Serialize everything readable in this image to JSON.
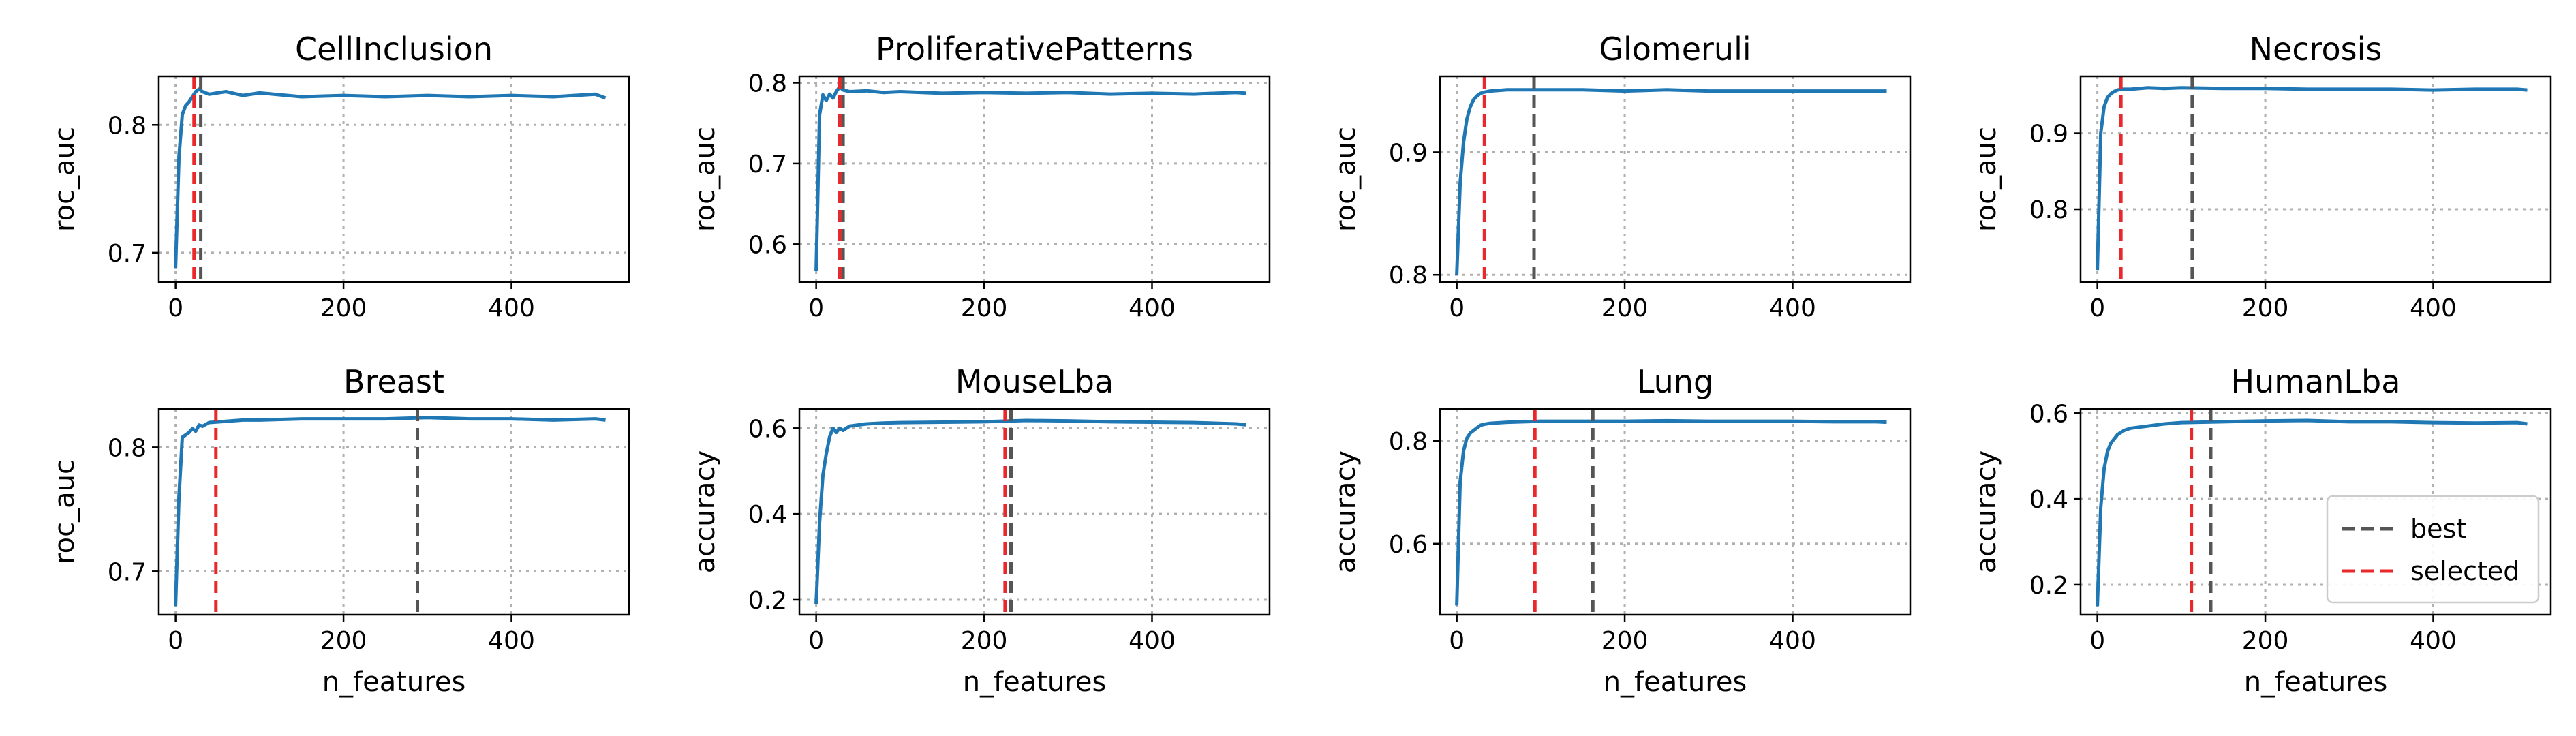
{
  "figure": {
    "colors": {
      "curve": "#1f77b4",
      "best": "#555555",
      "selected": "#e8282a",
      "grid": "#b0b0b0"
    }
  },
  "chart_data": [
    {
      "type": "line",
      "title": "CellInclusion",
      "xlabel": "",
      "ylabel": "roc_auc",
      "xlim": [
        -20,
        540
      ],
      "ylim": [
        0.677,
        0.838
      ],
      "xticks": [
        0,
        200,
        400
      ],
      "xtick_labels": [
        "0",
        "200",
        "400"
      ],
      "yticks": [
        0.7,
        0.8
      ],
      "ytick_labels": [
        "0.7",
        "0.8"
      ],
      "grid": true,
      "x": [
        0,
        4,
        8,
        12,
        16,
        20,
        24,
        28,
        32,
        40,
        60,
        80,
        100,
        150,
        200,
        250,
        300,
        350,
        400,
        450,
        500,
        512
      ],
      "y": [
        0.688,
        0.775,
        0.808,
        0.815,
        0.818,
        0.822,
        0.826,
        0.828,
        0.826,
        0.824,
        0.826,
        0.823,
        0.825,
        0.822,
        0.823,
        0.822,
        0.823,
        0.822,
        0.823,
        0.822,
        0.824,
        0.821
      ],
      "best_x": 30,
      "selected_x": 22
    },
    {
      "type": "line",
      "title": "ProliferativePatterns",
      "xlabel": "",
      "ylabel": "roc_auc",
      "xlim": [
        -20,
        540
      ],
      "ylim": [
        0.553,
        0.808
      ],
      "xticks": [
        0,
        200,
        400
      ],
      "xtick_labels": [
        "0",
        "200",
        "400"
      ],
      "yticks": [
        0.6,
        0.7,
        0.8
      ],
      "ytick_labels": [
        "0.6",
        "0.7",
        "0.8"
      ],
      "grid": true,
      "x": [
        0,
        4,
        8,
        12,
        16,
        20,
        24,
        28,
        32,
        40,
        60,
        80,
        100,
        150,
        200,
        250,
        300,
        350,
        400,
        450,
        500,
        512
      ],
      "y": [
        0.567,
        0.76,
        0.785,
        0.778,
        0.786,
        0.781,
        0.789,
        0.795,
        0.791,
        0.789,
        0.79,
        0.788,
        0.789,
        0.787,
        0.788,
        0.787,
        0.788,
        0.786,
        0.787,
        0.786,
        0.788,
        0.787
      ],
      "best_x": 32,
      "selected_x": 28
    },
    {
      "type": "line",
      "title": "Glomeruli",
      "xlabel": "",
      "ylabel": "roc_auc",
      "xlim": [
        -20,
        540
      ],
      "ylim": [
        0.794,
        0.962
      ],
      "xticks": [
        0,
        200,
        400
      ],
      "xtick_labels": [
        "0",
        "200",
        "400"
      ],
      "yticks": [
        0.8,
        0.9
      ],
      "ytick_labels": [
        "0.8",
        "0.9"
      ],
      "grid": true,
      "x": [
        0,
        4,
        8,
        12,
        16,
        20,
        24,
        28,
        32,
        40,
        60,
        80,
        100,
        150,
        200,
        250,
        300,
        350,
        400,
        450,
        500,
        512
      ],
      "y": [
        0.8,
        0.875,
        0.908,
        0.927,
        0.937,
        0.943,
        0.946,
        0.948,
        0.949,
        0.95,
        0.951,
        0.951,
        0.951,
        0.951,
        0.95,
        0.951,
        0.95,
        0.95,
        0.95,
        0.95,
        0.95,
        0.95
      ],
      "best_x": 92,
      "selected_x": 33
    },
    {
      "type": "line",
      "title": "Necrosis",
      "xlabel": "",
      "ylabel": "roc_auc",
      "xlim": [
        -20,
        540
      ],
      "ylim": [
        0.704,
        0.975
      ],
      "xticks": [
        0,
        200,
        400
      ],
      "xtick_labels": [
        "0",
        "200",
        "400"
      ],
      "yticks": [
        0.8,
        0.9
      ],
      "ytick_labels": [
        "0.8",
        "0.9"
      ],
      "grid": true,
      "x": [
        0,
        4,
        8,
        12,
        16,
        20,
        24,
        28,
        32,
        40,
        60,
        80,
        100,
        150,
        200,
        250,
        300,
        350,
        400,
        450,
        500,
        512
      ],
      "y": [
        0.72,
        0.9,
        0.935,
        0.947,
        0.952,
        0.955,
        0.957,
        0.958,
        0.958,
        0.958,
        0.96,
        0.959,
        0.96,
        0.959,
        0.959,
        0.958,
        0.958,
        0.958,
        0.957,
        0.958,
        0.958,
        0.957
      ],
      "best_x": 113,
      "selected_x": 28
    },
    {
      "type": "line",
      "title": "Breast",
      "xlabel": "n_features",
      "ylabel": "roc_auc",
      "xlim": [
        -20,
        540
      ],
      "ylim": [
        0.665,
        0.831
      ],
      "xticks": [
        0,
        200,
        400
      ],
      "xtick_labels": [
        "0",
        "200",
        "400"
      ],
      "yticks": [
        0.7,
        0.8
      ],
      "ytick_labels": [
        "0.7",
        "0.8"
      ],
      "grid": true,
      "x": [
        0,
        4,
        8,
        12,
        16,
        20,
        24,
        28,
        32,
        40,
        60,
        80,
        100,
        150,
        200,
        250,
        300,
        350,
        400,
        450,
        500,
        512
      ],
      "y": [
        0.672,
        0.76,
        0.808,
        0.81,
        0.812,
        0.815,
        0.813,
        0.818,
        0.817,
        0.82,
        0.821,
        0.822,
        0.822,
        0.823,
        0.823,
        0.823,
        0.824,
        0.823,
        0.823,
        0.822,
        0.823,
        0.822
      ],
      "best_x": 288,
      "selected_x": 48
    },
    {
      "type": "line",
      "title": "MouseLba",
      "xlabel": "n_features",
      "ylabel": "accuracy",
      "xlim": [
        -20,
        540
      ],
      "ylim": [
        0.165,
        0.645
      ],
      "xticks": [
        0,
        200,
        400
      ],
      "xtick_labels": [
        "0",
        "200",
        "400"
      ],
      "yticks": [
        0.2,
        0.4,
        0.6
      ],
      "ytick_labels": [
        "0.2",
        "0.4",
        "0.6"
      ],
      "grid": true,
      "x": [
        0,
        4,
        8,
        12,
        16,
        20,
        24,
        28,
        32,
        40,
        60,
        80,
        100,
        150,
        200,
        250,
        300,
        350,
        400,
        450,
        500,
        512
      ],
      "y": [
        0.19,
        0.38,
        0.49,
        0.54,
        0.58,
        0.6,
        0.59,
        0.6,
        0.595,
        0.605,
        0.61,
        0.612,
        0.613,
        0.614,
        0.615,
        0.618,
        0.617,
        0.615,
        0.614,
        0.613,
        0.61,
        0.608
      ],
      "best_x": 232,
      "selected_x": 225
    },
    {
      "type": "line",
      "title": "Lung",
      "xlabel": "n_features",
      "ylabel": "accuracy",
      "xlim": [
        -20,
        540
      ],
      "ylim": [
        0.462,
        0.862
      ],
      "xticks": [
        0,
        200,
        400
      ],
      "xtick_labels": [
        "0",
        "200",
        "400"
      ],
      "yticks": [
        0.6,
        0.8
      ],
      "ytick_labels": [
        "0.6",
        "0.8"
      ],
      "grid": true,
      "x": [
        0,
        4,
        8,
        12,
        16,
        20,
        24,
        28,
        32,
        40,
        60,
        80,
        100,
        150,
        200,
        250,
        300,
        350,
        400,
        450,
        500,
        512
      ],
      "y": [
        0.48,
        0.72,
        0.78,
        0.805,
        0.815,
        0.82,
        0.825,
        0.83,
        0.832,
        0.834,
        0.836,
        0.837,
        0.838,
        0.838,
        0.838,
        0.839,
        0.838,
        0.838,
        0.838,
        0.837,
        0.837,
        0.836
      ],
      "best_x": 162,
      "selected_x": 93
    },
    {
      "type": "line",
      "title": "HumanLba",
      "xlabel": "n_features",
      "ylabel": "accuracy",
      "xlim": [
        -20,
        540
      ],
      "ylim": [
        0.13,
        0.61
      ],
      "xticks": [
        0,
        200,
        400
      ],
      "xtick_labels": [
        "0",
        "200",
        "400"
      ],
      "yticks": [
        0.2,
        0.4,
        0.6
      ],
      "ytick_labels": [
        "0.2",
        "0.4",
        "0.6"
      ],
      "grid": true,
      "legend": {
        "location": "lower-right",
        "entries": [
          "best",
          "selected"
        ]
      },
      "x": [
        0,
        4,
        8,
        12,
        16,
        20,
        24,
        28,
        32,
        40,
        60,
        80,
        100,
        150,
        200,
        250,
        300,
        350,
        400,
        450,
        500,
        512
      ],
      "y": [
        0.15,
        0.38,
        0.47,
        0.51,
        0.53,
        0.54,
        0.55,
        0.555,
        0.56,
        0.565,
        0.57,
        0.575,
        0.578,
        0.58,
        0.582,
        0.583,
        0.58,
        0.58,
        0.578,
        0.577,
        0.578,
        0.575
      ],
      "best_x": 135,
      "selected_x": 112
    }
  ]
}
